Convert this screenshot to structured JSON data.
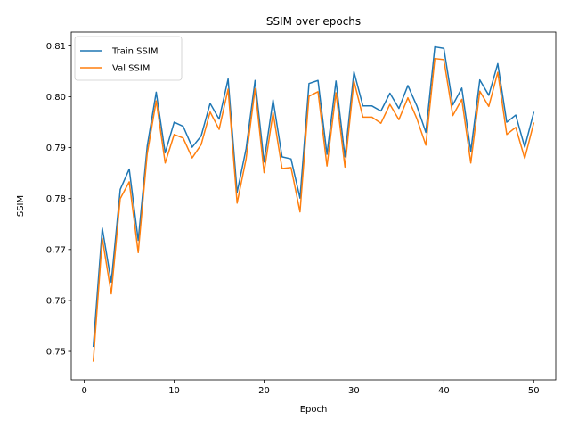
{
  "chart_data": {
    "type": "line",
    "title": "SSIM over epochs",
    "xlabel": "Epoch",
    "ylabel": "SSIM",
    "xlim": [
      -1.45,
      52.45
    ],
    "ylim": [
      0.7444,
      0.8127
    ],
    "xticks": [
      0,
      10,
      20,
      30,
      40,
      50
    ],
    "yticks": [
      0.75,
      0.76,
      0.77,
      0.78,
      0.79,
      0.8,
      0.81
    ],
    "xtick_labels": [
      "0",
      "10",
      "20",
      "30",
      "40",
      "50"
    ],
    "ytick_labels": [
      "0.75",
      "0.76",
      "0.77",
      "0.78",
      "0.79",
      "0.80",
      "0.81"
    ],
    "grid": false,
    "legend_position": "top-left",
    "x": [
      1,
      2,
      3,
      4,
      5,
      6,
      7,
      8,
      9,
      10,
      11,
      12,
      13,
      14,
      15,
      16,
      17,
      18,
      19,
      20,
      21,
      22,
      23,
      24,
      25,
      26,
      27,
      28,
      29,
      30,
      31,
      32,
      33,
      34,
      35,
      36,
      37,
      38,
      39,
      40,
      41,
      42,
      43,
      44,
      45,
      46,
      47,
      48,
      49,
      50
    ],
    "series": [
      {
        "name": "Train SSIM",
        "color": "#1f77b4",
        "values": [
          0.751,
          0.7742,
          0.7636,
          0.7818,
          0.7858,
          0.7718,
          0.7903,
          0.8009,
          0.789,
          0.795,
          0.7942,
          0.7901,
          0.7923,
          0.7987,
          0.7956,
          0.8035,
          0.7812,
          0.7898,
          0.8032,
          0.7872,
          0.7994,
          0.7882,
          0.7878,
          0.7801,
          0.8026,
          0.8032,
          0.7887,
          0.8031,
          0.7882,
          0.8049,
          0.7982,
          0.7982,
          0.7972,
          0.8007,
          0.7977,
          0.8022,
          0.7982,
          0.793,
          0.8098,
          0.8095,
          0.7984,
          0.8017,
          0.7893,
          0.8033,
          0.8003,
          0.8065,
          0.795,
          0.7964,
          0.7901,
          0.7969
        ]
      },
      {
        "name": "Val SSIM",
        "color": "#ff7f0e",
        "values": [
          0.7481,
          0.7722,
          0.7613,
          0.78,
          0.7833,
          0.7694,
          0.7888,
          0.7992,
          0.787,
          0.7926,
          0.7919,
          0.788,
          0.7906,
          0.797,
          0.7936,
          0.8015,
          0.7791,
          0.7878,
          0.8016,
          0.7851,
          0.7969,
          0.7859,
          0.7861,
          0.7774,
          0.8001,
          0.801,
          0.7864,
          0.8008,
          0.7862,
          0.8031,
          0.796,
          0.796,
          0.7948,
          0.7985,
          0.7955,
          0.7998,
          0.7957,
          0.7905,
          0.8075,
          0.8073,
          0.7963,
          0.7995,
          0.787,
          0.8011,
          0.7981,
          0.8048,
          0.7926,
          0.794,
          0.7879,
          0.7948
        ]
      }
    ]
  }
}
